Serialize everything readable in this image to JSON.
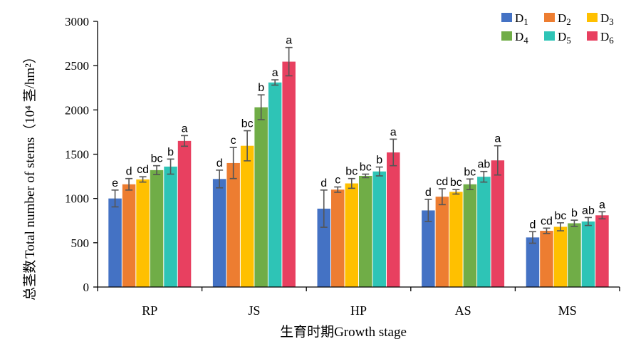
{
  "chart_data": {
    "type": "bar",
    "title": "",
    "xlabel": "生育时期Growth stage",
    "ylabel_cn": "总茎数",
    "ylabel_en": "Total number of stems",
    "ylabel_unit": "（10⁴ 茎/hm²）",
    "ylim": [
      0,
      3000
    ],
    "yticks": [
      "0",
      "500",
      "1000",
      "1500",
      "2000",
      "2500",
      "3000"
    ],
    "categories": [
      "RP",
      "JS",
      "HP",
      "AS",
      "MS"
    ],
    "legend_position": "top-right",
    "grid": false,
    "series": [
      {
        "name": "D1",
        "name_base": "D",
        "name_sub": "1",
        "color": "#4472C4",
        "values": [
          1000,
          1220,
          885,
          865,
          560
        ],
        "errors": [
          95,
          100,
          210,
          125,
          65
        ],
        "letters": [
          "e",
          "d",
          "d",
          "d",
          "d"
        ]
      },
      {
        "name": "D2",
        "name_base": "D",
        "name_sub": "2",
        "color": "#ED7D31",
        "values": [
          1160,
          1400,
          1100,
          1020,
          635
        ],
        "errors": [
          65,
          175,
          30,
          90,
          30
        ],
        "letters": [
          "d",
          "c",
          "c",
          "cd",
          "cd"
        ]
      },
      {
        "name": "D3",
        "name_base": "D",
        "name_sub": "3",
        "color": "#FFC000",
        "values": [
          1215,
          1595,
          1170,
          1075,
          680
        ],
        "errors": [
          30,
          170,
          55,
          25,
          45
        ],
        "letters": [
          "cd",
          "bc",
          "bc",
          "bc",
          "bc"
        ]
      },
      {
        "name": "D4",
        "name_base": "D",
        "name_sub": "4",
        "color": "#70AD47",
        "values": [
          1320,
          2030,
          1255,
          1160,
          720
        ],
        "errors": [
          50,
          140,
          20,
          60,
          35
        ],
        "letters": [
          "bc",
          "b",
          "bc",
          "bc",
          "b"
        ]
      },
      {
        "name": "D5",
        "name_base": "D",
        "name_sub": "5",
        "color": "#2EC4B6",
        "values": [
          1360,
          2310,
          1305,
          1245,
          740
        ],
        "errors": [
          85,
          30,
          50,
          60,
          45
        ],
        "letters": [
          "b",
          "a",
          "b",
          "ab",
          "ab"
        ]
      },
      {
        "name": "D6",
        "name_base": "D",
        "name_sub": "6",
        "color": "#E84060",
        "values": [
          1650,
          2545,
          1520,
          1430,
          810
        ],
        "errors": [
          60,
          160,
          150,
          165,
          40
        ],
        "letters": [
          "a",
          "a",
          "a",
          "a",
          "a"
        ]
      }
    ]
  }
}
